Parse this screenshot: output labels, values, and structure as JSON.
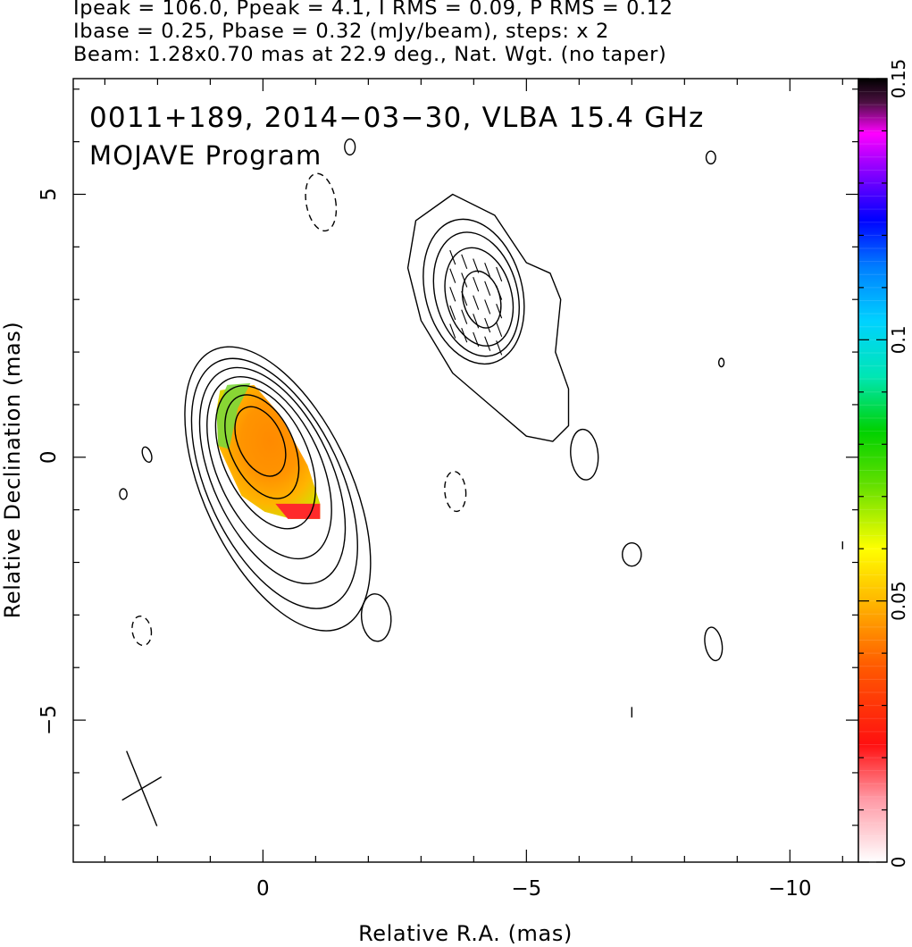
{
  "header": {
    "line1": "Ipeak = 106.0, Ppeak = 4.1, I RMS = 0.09, P RMS = 0.12",
    "line2": "Ibase = 0.25, Pbase = 0.32 (mJy/beam), steps: x 2",
    "line3": "Beam: 1.28x0.70 mas at 22.9 deg., Nat. Wgt. (no taper)"
  },
  "labels": {
    "source": "0011+189, 2014−03−30, VLBA 15.4 GHz",
    "program": "MOJAVE Program"
  },
  "chart_data": {
    "type": "heatmap",
    "xlabel": "Relative R.A. (mas)",
    "ylabel": "Relative Declination (mas)",
    "xlim": [
      3.6,
      -11.3
    ],
    "ylim": [
      -7.7,
      7.2
    ],
    "x_ticks": [
      {
        "value": 0,
        "label": "0"
      },
      {
        "value": -5,
        "label": "−5"
      },
      {
        "value": -10,
        "label": "−10"
      }
    ],
    "y_ticks": [
      {
        "value": -5,
        "label": "−5"
      },
      {
        "value": 0,
        "label": "0"
      },
      {
        "value": 5,
        "label": "5"
      }
    ],
    "colorbar": {
      "range": [
        0,
        0.15
      ],
      "ticks": [
        {
          "value": 0,
          "label": "0"
        },
        {
          "value": 0.05,
          "label": "0.05"
        },
        {
          "value": 0.1,
          "label": "0.1"
        },
        {
          "value": 0.15,
          "label": "0.15"
        }
      ]
    },
    "core_contours_mas": [
      {
        "x": 0.05,
        "y": 0.3,
        "a": 0.7,
        "b": 0.42,
        "angle": 25,
        "style": "solid"
      },
      {
        "x": 0.02,
        "y": 0.2,
        "a": 1.05,
        "b": 0.6,
        "angle": 25,
        "style": "solid"
      },
      {
        "x": -0.05,
        "y": 0.0,
        "a": 1.45,
        "b": 0.8,
        "angle": 25,
        "style": "solid"
      },
      {
        "x": -0.12,
        "y": -0.2,
        "a": 1.85,
        "b": 0.98,
        "angle": 25,
        "style": "solid"
      },
      {
        "x": -0.18,
        "y": -0.35,
        "a": 2.2,
        "b": 1.13,
        "angle": 25,
        "style": "solid"
      },
      {
        "x": -0.22,
        "y": -0.5,
        "a": 2.55,
        "b": 1.27,
        "angle": 25,
        "style": "solid"
      },
      {
        "x": -0.28,
        "y": -0.6,
        "a": 2.9,
        "b": 1.4,
        "angle": 25,
        "style": "solid"
      }
    ],
    "knot_contours_mas": [
      {
        "x": -4.15,
        "y": 3.0,
        "a": 0.55,
        "b": 0.35,
        "angle": 15,
        "style": "solid"
      },
      {
        "x": -4.1,
        "y": 3.05,
        "a": 0.95,
        "b": 0.62,
        "angle": 15,
        "style": "solid"
      },
      {
        "x": -4.05,
        "y": 3.1,
        "a": 1.2,
        "b": 0.78,
        "angle": 15,
        "style": "solid"
      },
      {
        "x": -4.0,
        "y": 3.15,
        "a": 1.4,
        "b": 0.92,
        "angle": 15,
        "style": "solid"
      }
    ],
    "small_contours_mas": [
      {
        "x": -1.1,
        "y": 4.85,
        "a": 0.55,
        "b": 0.28,
        "angle": 10,
        "style": "dashed"
      },
      {
        "x": -3.65,
        "y": -0.65,
        "a": 0.38,
        "b": 0.2,
        "angle": 5,
        "style": "dashed"
      },
      {
        "x": 2.3,
        "y": -3.3,
        "a": 0.28,
        "b": 0.18,
        "angle": 10,
        "style": "dashed"
      },
      {
        "x": -2.15,
        "y": -3.05,
        "a": 0.45,
        "b": 0.28,
        "angle": 5,
        "style": "solid"
      },
      {
        "x": -6.1,
        "y": 0.05,
        "a": 0.48,
        "b": 0.26,
        "angle": 5,
        "style": "solid"
      },
      {
        "x": -7.0,
        "y": -1.85,
        "a": 0.22,
        "b": 0.18,
        "angle": 0,
        "style": "solid"
      },
      {
        "x": -8.55,
        "y": -3.55,
        "a": 0.32,
        "b": 0.16,
        "angle": 10,
        "style": "solid"
      },
      {
        "x": -8.5,
        "y": 5.7,
        "a": 0.12,
        "b": 0.09,
        "angle": 0,
        "style": "solid"
      },
      {
        "x": -8.7,
        "y": 1.8,
        "a": 0.08,
        "b": 0.05,
        "angle": 0,
        "style": "solid"
      },
      {
        "x": -1.65,
        "y": 5.9,
        "a": 0.15,
        "b": 0.1,
        "angle": 0,
        "style": "solid"
      },
      {
        "x": 2.2,
        "y": 0.05,
        "a": 0.15,
        "b": 0.08,
        "angle": 20,
        "style": "solid"
      },
      {
        "x": 2.65,
        "y": -0.7,
        "a": 0.1,
        "b": 0.07,
        "angle": 0,
        "style": "solid"
      }
    ]
  },
  "colors": {
    "contour": "#000000",
    "pol_stops": [
      "#ff2a2a",
      "#ff5a00",
      "#ff8c00",
      "#ffb000",
      "#ffd400",
      "#b8e000",
      "#30d830"
    ]
  }
}
